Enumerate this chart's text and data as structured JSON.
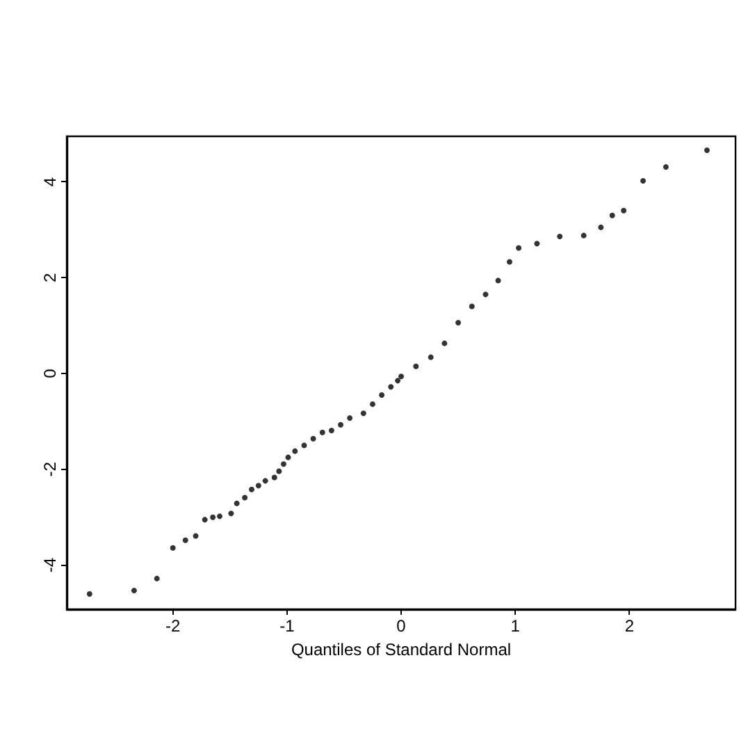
{
  "chart_data": {
    "type": "scatter",
    "xlabel": "Quantiles of Standard Normal",
    "color": "#000000",
    "marker": "circle",
    "grid": false,
    "x": [
      -2.73,
      -2.34,
      -2.14,
      -2.0,
      -1.89,
      -1.8,
      -1.72,
      -1.65,
      -1.59,
      -1.49,
      -1.44,
      -1.37,
      -1.31,
      -1.25,
      -1.19,
      -1.11,
      -1.07,
      -1.03,
      -0.99,
      -0.93,
      -0.85,
      -0.77,
      -0.69,
      -0.61,
      -0.53,
      -0.45,
      -0.33,
      -0.25,
      -0.17,
      -0.09,
      -0.03,
      0.0,
      0.13,
      0.26,
      0.38,
      0.5,
      0.62,
      0.74,
      0.85,
      0.95,
      1.03,
      1.19,
      1.39,
      1.6,
      1.75,
      1.85,
      1.95,
      2.12,
      2.32,
      2.68
    ],
    "values": [
      -4.6,
      -4.53,
      -4.28,
      -3.64,
      -3.48,
      -3.39,
      -3.05,
      -3.0,
      -2.98,
      -2.92,
      -2.71,
      -2.59,
      -2.42,
      -2.34,
      -2.24,
      -2.17,
      -2.04,
      -1.89,
      -1.75,
      -1.62,
      -1.5,
      -1.36,
      -1.23,
      -1.19,
      -1.07,
      -0.93,
      -0.83,
      -0.64,
      -0.45,
      -0.28,
      -0.15,
      -0.06,
      0.15,
      0.34,
      0.63,
      1.06,
      1.4,
      1.65,
      1.94,
      2.33,
      2.62,
      2.71,
      2.86,
      2.88,
      3.05,
      3.3,
      3.4,
      4.02,
      4.31,
      4.66
    ],
    "xlim": [
      -2.93,
      2.93
    ],
    "xticks": [
      -2,
      -1,
      0,
      1,
      2
    ],
    "ylim": [
      -4.92,
      4.95
    ],
    "yticks": [
      -4,
      -2,
      0,
      2,
      4
    ]
  }
}
